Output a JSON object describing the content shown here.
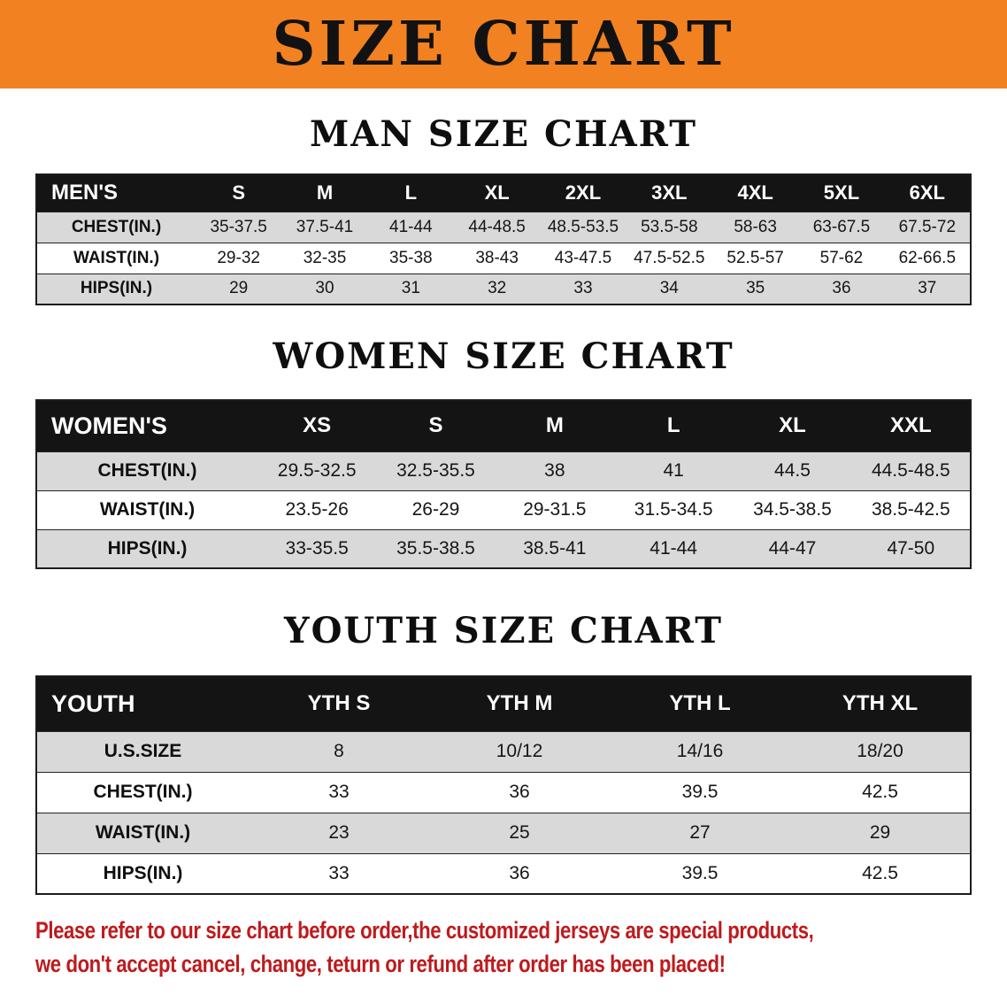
{
  "colors": {
    "banner-orange": "#F28122",
    "header-black": "#141414",
    "row-gray": "#D9D9D9",
    "line-black": "#1c1c1c",
    "footer-red": "#BE1A1D"
  },
  "banner": {
    "title": "SIZE CHART"
  },
  "sections": [
    {
      "heading": "MAN SIZE CHART",
      "corner_label": "MEN'S",
      "columns": [
        "S",
        "M",
        "L",
        "XL",
        "2XL",
        "3XL",
        "4XL",
        "5XL",
        "6XL"
      ],
      "rows": [
        {
          "label": "CHEST(IN.)",
          "values": [
            "35-37.5",
            "37.5-41",
            "41-44",
            "44-48.5",
            "48.5-53.5",
            "53.5-58",
            "58-63",
            "63-67.5",
            "67.5-72"
          ]
        },
        {
          "label": "WAIST(IN.)",
          "values": [
            "29-32",
            "32-35",
            "35-38",
            "38-43",
            "43-47.5",
            "47.5-52.5",
            "52.5-57",
            "57-62",
            "62-66.5"
          ]
        },
        {
          "label": "HIPS(IN.)",
          "values": [
            "29",
            "30",
            "31",
            "32",
            "33",
            "34",
            "35",
            "36",
            "37"
          ]
        }
      ]
    },
    {
      "heading": "WOMEN SIZE CHART",
      "corner_label": "WOMEN'S",
      "columns": [
        "XS",
        "S",
        "M",
        "L",
        "XL",
        "XXL"
      ],
      "rows": [
        {
          "label": "CHEST(IN.)",
          "values": [
            "29.5-32.5",
            "32.5-35.5",
            "38",
            "41",
            "44.5",
            "44.5-48.5"
          ]
        },
        {
          "label": "WAIST(IN.)",
          "values": [
            "23.5-26",
            "26-29",
            "29-31.5",
            "31.5-34.5",
            "34.5-38.5",
            "38.5-42.5"
          ]
        },
        {
          "label": "HIPS(IN.)",
          "values": [
            "33-35.5",
            "35.5-38.5",
            "38.5-41",
            "41-44",
            "44-47",
            "47-50"
          ]
        }
      ]
    },
    {
      "heading": "YOUTH SIZE CHART",
      "corner_label": "YOUTH",
      "columns": [
        "YTH S",
        "YTH M",
        "YTH L",
        "YTH XL"
      ],
      "rows": [
        {
          "label": "U.S.SIZE",
          "values": [
            "8",
            "10/12",
            "14/16",
            "18/20"
          ]
        },
        {
          "label": "CHEST(IN.)",
          "values": [
            "33",
            "36",
            "39.5",
            "42.5"
          ]
        },
        {
          "label": "WAIST(IN.)",
          "values": [
            "23",
            "25",
            "27",
            "29"
          ]
        },
        {
          "label": "HIPS(IN.)",
          "values": [
            "33",
            "36",
            "39.5",
            "42.5"
          ]
        }
      ]
    }
  ],
  "footer": {
    "line1": "Please refer to our size chart before order,the customized jerseys are special products,",
    "line2": "we don't accept cancel, change, teturn or refund after order has been placed!"
  }
}
